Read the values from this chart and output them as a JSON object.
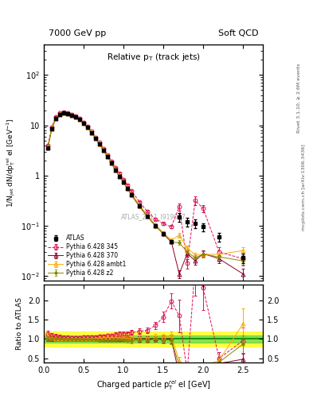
{
  "title_left": "7000 GeV pp",
  "title_right": "Soft QCD",
  "main_title": "Relative p$_T$ (track jets)",
  "xlabel": "Charged particle p$_T^{rel}$ el [GeV]",
  "ylabel_main": "1/N$_{jet}$ dN/dp$_T^{rel}$ el [GeV$^{-1}$]",
  "ylabel_ratio": "Ratio to ATLAS",
  "right_label_top": "Rivet 3.1.10, ≥ 2.6M events",
  "right_label_bot": "mcplots.cern.ch [arXiv:1306.3436]",
  "watermark": "ATLAS_2011_I919017",
  "atlas_x": [
    0.05,
    0.1,
    0.15,
    0.2,
    0.25,
    0.3,
    0.35,
    0.4,
    0.45,
    0.5,
    0.55,
    0.6,
    0.65,
    0.7,
    0.75,
    0.8,
    0.85,
    0.9,
    0.95,
    1.0,
    1.05,
    1.1,
    1.2,
    1.3,
    1.4,
    1.5,
    1.6,
    1.7,
    1.8,
    1.9,
    2.0,
    2.2,
    2.5
  ],
  "atlas_y": [
    3.5,
    8.5,
    13.5,
    16.5,
    17.5,
    17.0,
    16.0,
    14.5,
    13.0,
    11.0,
    9.0,
    7.2,
    5.5,
    4.2,
    3.2,
    2.4,
    1.75,
    1.3,
    0.97,
    0.74,
    0.56,
    0.42,
    0.25,
    0.155,
    0.1,
    0.07,
    0.048,
    0.15,
    0.12,
    0.11,
    0.095,
    0.06,
    0.023
  ],
  "atlas_yerr": [
    0.2,
    0.4,
    0.6,
    0.7,
    0.7,
    0.6,
    0.5,
    0.5,
    0.4,
    0.35,
    0.28,
    0.22,
    0.17,
    0.13,
    0.1,
    0.08,
    0.06,
    0.05,
    0.04,
    0.03,
    0.025,
    0.018,
    0.012,
    0.008,
    0.006,
    0.005,
    0.004,
    0.03,
    0.025,
    0.022,
    0.018,
    0.012,
    0.005
  ],
  "py345_x": [
    0.05,
    0.1,
    0.15,
    0.2,
    0.25,
    0.3,
    0.35,
    0.4,
    0.45,
    0.5,
    0.55,
    0.6,
    0.65,
    0.7,
    0.75,
    0.8,
    0.85,
    0.9,
    0.95,
    1.0,
    1.05,
    1.1,
    1.2,
    1.3,
    1.4,
    1.5,
    1.6,
    1.7,
    1.8,
    1.9,
    2.0,
    2.2,
    2.5
  ],
  "py345_y": [
    4.0,
    9.2,
    14.5,
    17.5,
    18.2,
    17.6,
    16.5,
    15.0,
    13.5,
    11.5,
    9.4,
    7.5,
    5.8,
    4.5,
    3.45,
    2.6,
    1.9,
    1.45,
    1.1,
    0.84,
    0.64,
    0.49,
    0.3,
    0.19,
    0.135,
    0.11,
    0.095,
    0.24,
    0.018,
    0.32,
    0.22,
    0.03,
    0.022
  ],
  "py345_yerr": [
    0.15,
    0.3,
    0.5,
    0.6,
    0.6,
    0.5,
    0.4,
    0.4,
    0.35,
    0.3,
    0.24,
    0.19,
    0.15,
    0.11,
    0.09,
    0.07,
    0.05,
    0.04,
    0.03,
    0.025,
    0.02,
    0.016,
    0.01,
    0.007,
    0.006,
    0.005,
    0.005,
    0.04,
    0.004,
    0.06,
    0.035,
    0.008,
    0.006
  ],
  "py370_x": [
    0.05,
    0.1,
    0.15,
    0.2,
    0.25,
    0.3,
    0.35,
    0.4,
    0.45,
    0.5,
    0.55,
    0.6,
    0.65,
    0.7,
    0.75,
    0.8,
    0.85,
    0.9,
    0.95,
    1.0,
    1.05,
    1.1,
    1.2,
    1.3,
    1.4,
    1.5,
    1.6,
    1.7,
    1.8,
    1.9,
    2.0,
    2.2,
    2.5
  ],
  "py370_y": [
    3.6,
    8.6,
    13.6,
    16.6,
    17.5,
    17.0,
    16.0,
    14.5,
    13.0,
    11.0,
    9.0,
    7.2,
    5.5,
    4.2,
    3.2,
    2.4,
    1.75,
    1.3,
    0.97,
    0.74,
    0.56,
    0.42,
    0.25,
    0.155,
    0.1,
    0.07,
    0.048,
    0.011,
    0.028,
    0.02,
    0.028,
    0.022,
    0.011
  ],
  "py370_yerr": [
    0.15,
    0.3,
    0.5,
    0.6,
    0.6,
    0.5,
    0.4,
    0.4,
    0.35,
    0.3,
    0.24,
    0.19,
    0.15,
    0.11,
    0.09,
    0.07,
    0.05,
    0.04,
    0.03,
    0.025,
    0.02,
    0.016,
    0.01,
    0.007,
    0.005,
    0.004,
    0.003,
    0.002,
    0.004,
    0.003,
    0.004,
    0.004,
    0.003
  ],
  "pyambt_x": [
    0.05,
    0.1,
    0.15,
    0.2,
    0.25,
    0.3,
    0.35,
    0.4,
    0.45,
    0.5,
    0.55,
    0.6,
    0.65,
    0.7,
    0.75,
    0.8,
    0.85,
    0.9,
    0.95,
    1.0,
    1.05,
    1.1,
    1.2,
    1.3,
    1.4,
    1.5,
    1.6,
    1.7,
    1.8,
    1.9,
    2.0,
    2.2,
    2.5
  ],
  "pyambt_y": [
    3.7,
    8.7,
    13.7,
    16.7,
    17.6,
    17.1,
    16.1,
    14.6,
    13.1,
    11.1,
    9.1,
    7.3,
    5.6,
    4.3,
    3.3,
    2.5,
    1.8,
    1.35,
    1.0,
    0.76,
    0.57,
    0.43,
    0.26,
    0.16,
    0.105,
    0.073,
    0.052,
    0.065,
    0.036,
    0.026,
    0.027,
    0.027,
    0.032
  ],
  "pyambt_yerr": [
    0.15,
    0.3,
    0.5,
    0.6,
    0.6,
    0.5,
    0.4,
    0.4,
    0.35,
    0.3,
    0.24,
    0.19,
    0.15,
    0.11,
    0.09,
    0.07,
    0.05,
    0.04,
    0.03,
    0.025,
    0.02,
    0.016,
    0.01,
    0.007,
    0.005,
    0.004,
    0.003,
    0.007,
    0.004,
    0.003,
    0.004,
    0.005,
    0.006
  ],
  "pyz2_x": [
    0.05,
    0.1,
    0.15,
    0.2,
    0.25,
    0.3,
    0.35,
    0.4,
    0.45,
    0.5,
    0.55,
    0.6,
    0.65,
    0.7,
    0.75,
    0.8,
    0.85,
    0.9,
    0.95,
    1.0,
    1.05,
    1.1,
    1.2,
    1.3,
    1.4,
    1.5,
    1.6,
    1.7,
    1.8,
    1.9,
    2.0,
    2.2,
    2.5
  ],
  "pyz2_y": [
    3.6,
    8.5,
    13.5,
    16.5,
    17.4,
    16.9,
    15.9,
    14.4,
    12.9,
    10.9,
    8.9,
    7.1,
    5.4,
    4.1,
    3.1,
    2.35,
    1.7,
    1.27,
    0.95,
    0.72,
    0.54,
    0.4,
    0.24,
    0.15,
    0.1,
    0.068,
    0.047,
    0.046,
    0.03,
    0.023,
    0.027,
    0.024,
    0.02
  ],
  "pyz2_yerr": [
    0.15,
    0.3,
    0.5,
    0.6,
    0.6,
    0.5,
    0.4,
    0.4,
    0.35,
    0.3,
    0.24,
    0.19,
    0.15,
    0.11,
    0.09,
    0.07,
    0.05,
    0.04,
    0.03,
    0.025,
    0.02,
    0.016,
    0.01,
    0.007,
    0.005,
    0.004,
    0.003,
    0.005,
    0.003,
    0.003,
    0.004,
    0.004,
    0.003
  ],
  "color_atlas": "#000000",
  "color_345": "#dd1155",
  "color_370": "#880022",
  "color_ambt": "#ffaa00",
  "color_z2": "#888800",
  "band_green": [
    0.9,
    1.1
  ],
  "band_yellow": [
    0.8,
    1.2
  ],
  "xlim": [
    0.0,
    2.75
  ],
  "ylim_main": [
    0.008,
    400
  ],
  "ylim_ratio": [
    0.4,
    2.4
  ],
  "ratio_yticks": [
    0.5,
    1.0,
    1.5,
    2.0
  ]
}
